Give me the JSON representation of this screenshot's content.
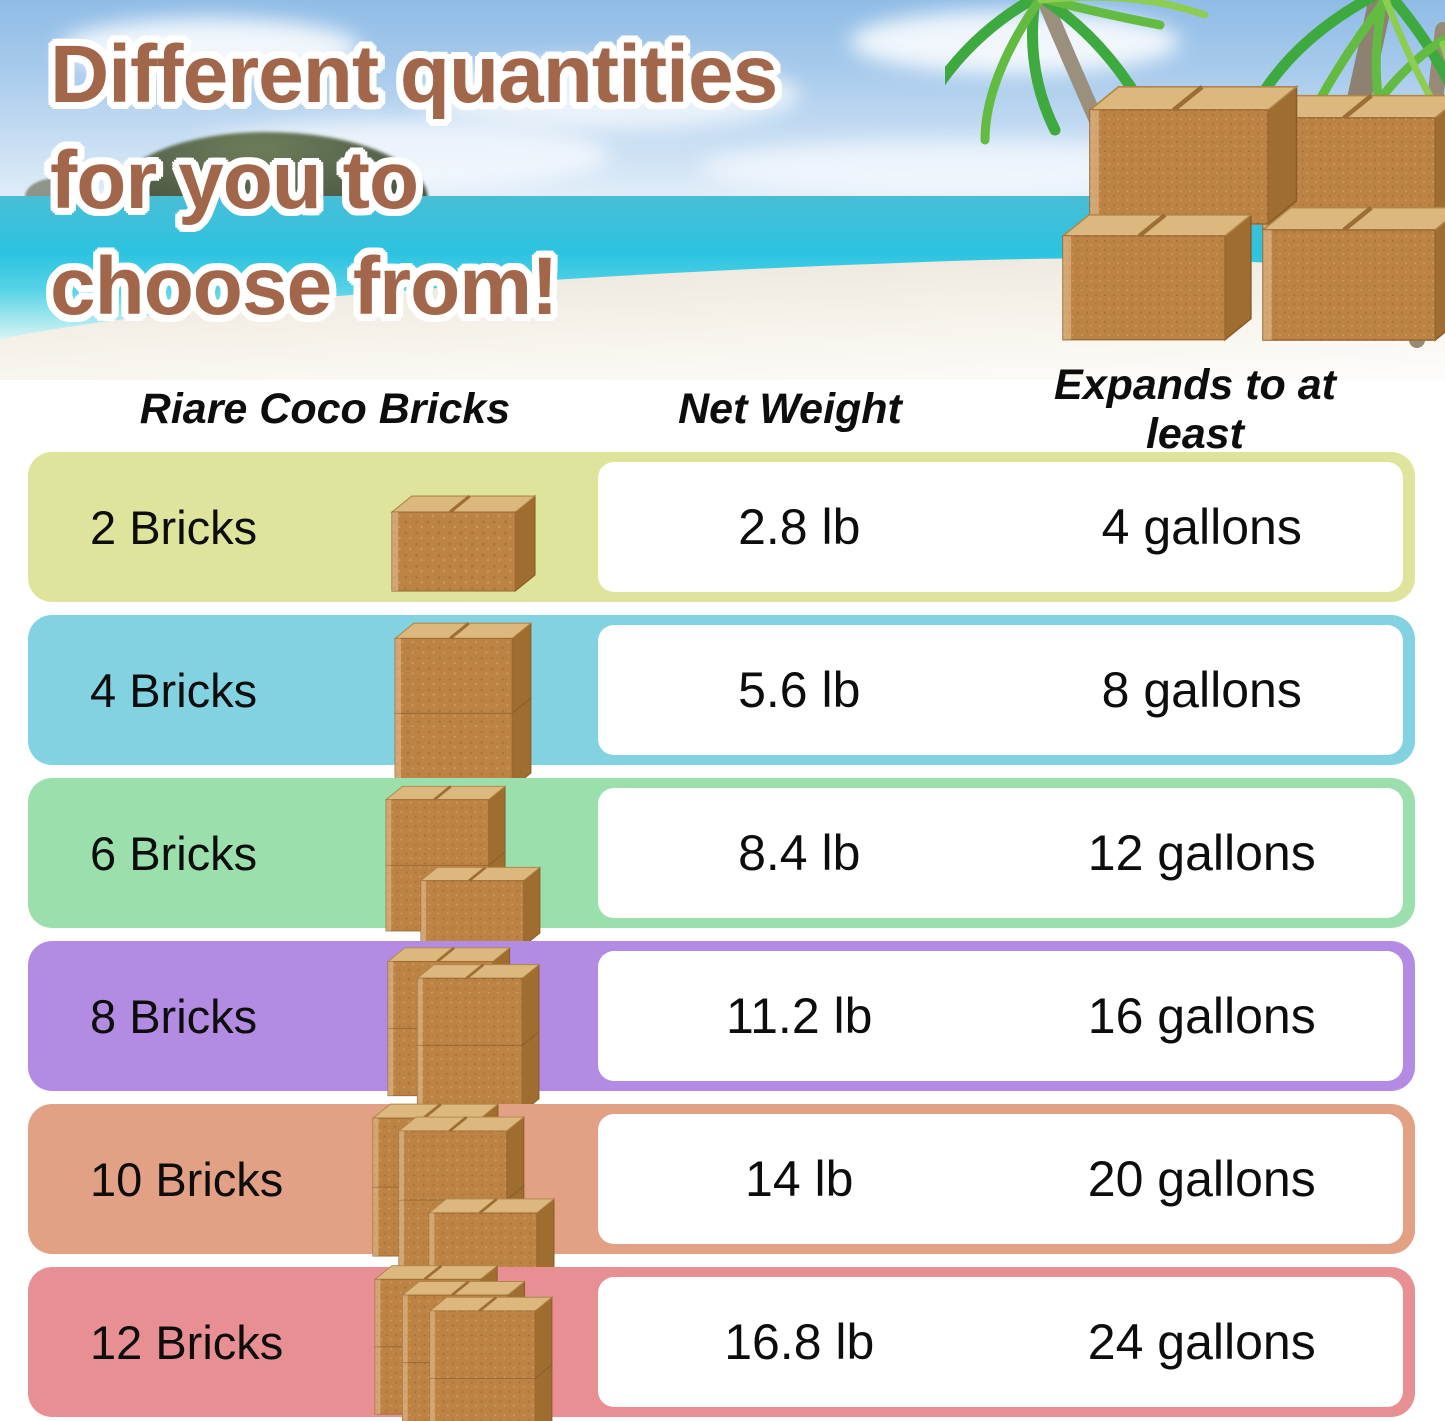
{
  "title": {
    "lines": [
      "Different quantities",
      "for you to",
      "choose from!"
    ],
    "color": "#a2674a"
  },
  "hero": {
    "scene_icons": [
      "palm-tree-icon",
      "coco-brick-stack-icon"
    ]
  },
  "table": {
    "headers": [
      "Riare Coco Bricks",
      "Net Weight",
      "Expands to at least"
    ],
    "rows": [
      {
        "label": "2 Bricks",
        "bricks": 2,
        "net_weight": "2.8 lb",
        "expands": "4 gallons",
        "color": "#dfe49c"
      },
      {
        "label": "4 Bricks",
        "bricks": 4,
        "net_weight": "5.6 lb",
        "expands": "8 gallons",
        "color": "#82d2e2"
      },
      {
        "label": "6 Bricks",
        "bricks": 6,
        "net_weight": "8.4 lb",
        "expands": "12 gallons",
        "color": "#9be0ac"
      },
      {
        "label": "8 Bricks",
        "bricks": 8,
        "net_weight": "11.2 lb",
        "expands": "16 gallons",
        "color": "#b38be2"
      },
      {
        "label": "10 Bricks",
        "bricks": 10,
        "net_weight": "14 lb",
        "expands": "20 gallons",
        "color": "#e2a184"
      },
      {
        "label": "12 Bricks",
        "bricks": 12,
        "net_weight": "16.8 lb",
        "expands": "24 gallons",
        "color": "#e88f94"
      }
    ]
  },
  "colors": {
    "brick_front": "#bd8344",
    "brick_top": "#dcb77e",
    "brick_side": "#a06d31",
    "sea": "#2cc3e0",
    "title_brown": "#a2674a"
  },
  "chart_data": {
    "type": "table",
    "title": "Different quantities for you to choose from!",
    "columns": [
      "Riare Coco Bricks",
      "Net Weight",
      "Expands to at least"
    ],
    "rows": [
      [
        "2 Bricks",
        "2.8 lb",
        "4 gallons"
      ],
      [
        "4 Bricks",
        "5.6 lb",
        "8 gallons"
      ],
      [
        "6 Bricks",
        "8.4 lb",
        "12 gallons"
      ],
      [
        "8 Bricks",
        "11.2 lb",
        "16 gallons"
      ],
      [
        "10 Bricks",
        "14 lb",
        "20 gallons"
      ],
      [
        "12 Bricks",
        "16.8 lb",
        "24 gallons"
      ]
    ],
    "net_weight_lb": [
      2.8,
      5.6,
      8.4,
      11.2,
      14,
      16.8
    ],
    "expands_gallons": [
      4,
      8,
      12,
      16,
      20,
      24
    ]
  }
}
